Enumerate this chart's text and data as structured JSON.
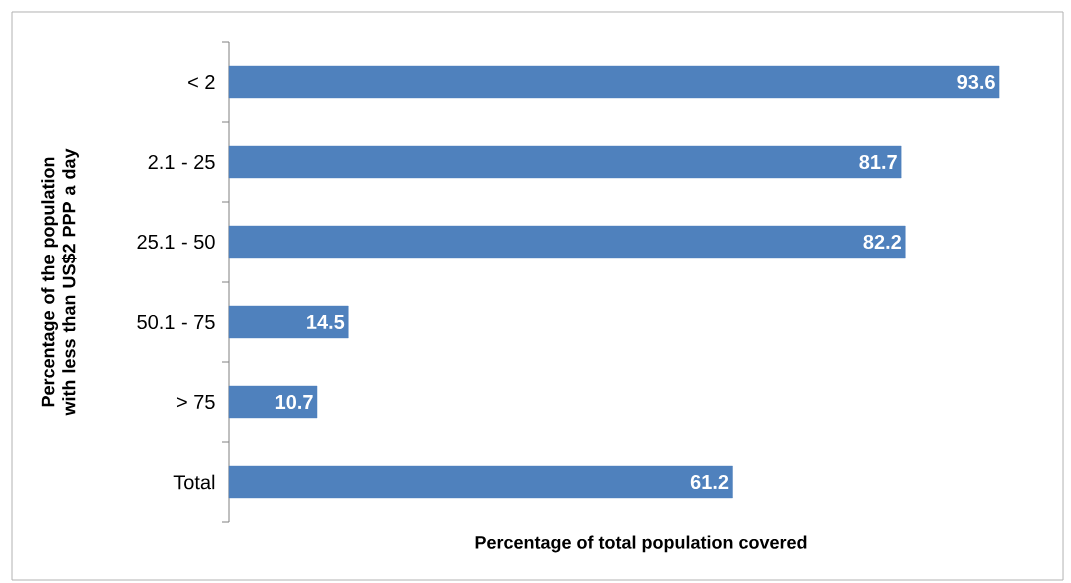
{
  "chart_data": {
    "type": "bar",
    "orientation": "horizontal",
    "xlabel": "Percentage of total population covered",
    "ylabel": "Percentage of the population with less than US$2  PPP a day",
    "categories": [
      "< 2",
      "2.1 - 25",
      "25.1 - 50",
      "50.1 - 75",
      "> 75",
      "Total"
    ],
    "values": [
      93.6,
      81.7,
      82.2,
      14.5,
      10.7,
      61.2
    ],
    "color": "#4f81bd",
    "data_labels": true,
    "tick_labels": "y"
  }
}
